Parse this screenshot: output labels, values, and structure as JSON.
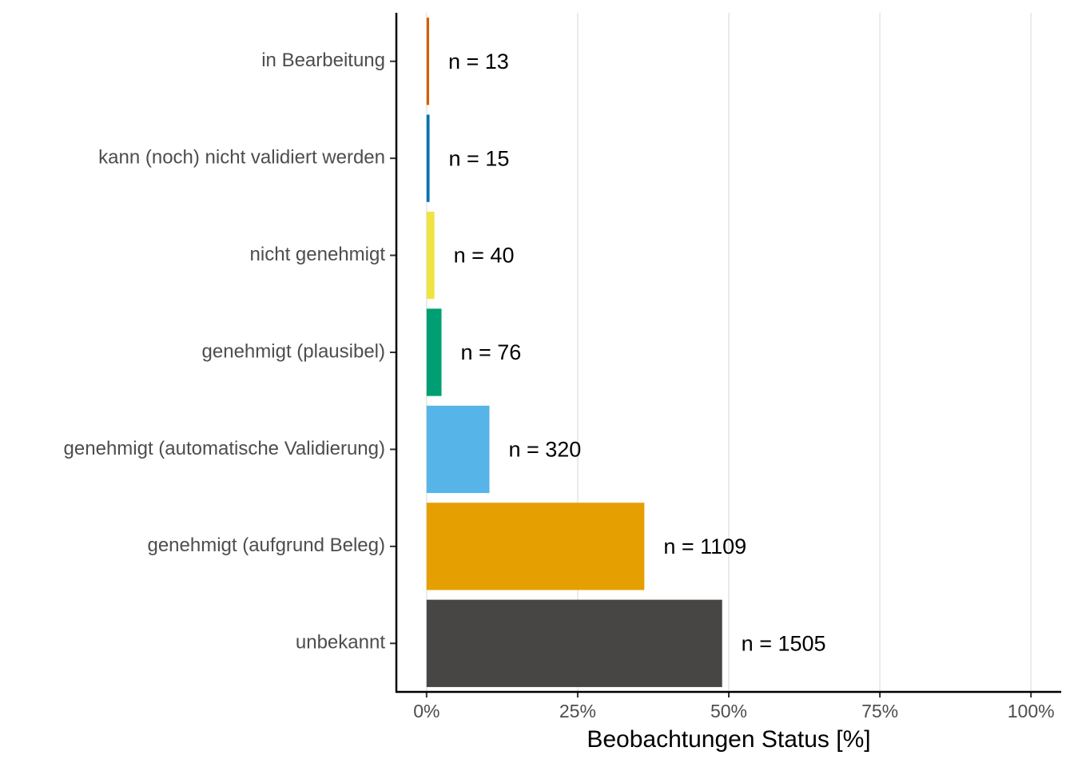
{
  "chart_data": {
    "type": "barh",
    "x_label": "Beobachtungen Status [%]",
    "categories": [
      "in Bearbeitung",
      "kann (noch) nicht validiert werden",
      "nicht genehmigt",
      "genehmigt (plausibel)",
      "genehmigt (automatische Validierung)",
      "genehmigt (aufgrund Beleg)",
      "unbekannt"
    ],
    "values": [
      0.42,
      0.49,
      1.3,
      2.47,
      10.4,
      36.03,
      48.9
    ],
    "colors": [
      "#D55E00",
      "#0072B2",
      "#F0E442",
      "#009E73",
      "#56B4E9",
      "#E69F00",
      "#474645"
    ],
    "annotations": [
      "n = 13",
      "n = 15",
      "n = 40",
      "n = 76",
      "n = 320",
      "n = 1109",
      "n = 1505"
    ],
    "xlim": [
      -5,
      105
    ],
    "xticks": [
      {
        "value": 0,
        "label": "0%"
      },
      {
        "value": 25,
        "label": "25%"
      },
      {
        "value": 50,
        "label": "50%"
      },
      {
        "value": 75,
        "label": "75%"
      },
      {
        "value": 100,
        "label": "100%"
      }
    ],
    "grid": true
  }
}
